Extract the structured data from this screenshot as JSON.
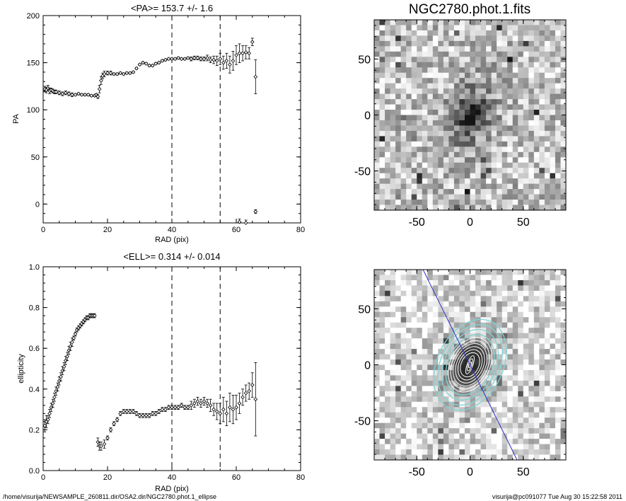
{
  "footer": {
    "left": "/home/visurija/NEWSAMPLE_260811.dir/OSA2.dir/NGC2780.phot.1_ellipse",
    "right": "visurija@pc091077  Tue Aug 30 15:22:58 2011"
  },
  "colors": {
    "axis": "#000000",
    "contour_outer": "#7fd4d4",
    "contour_inner": "#ffffff",
    "major_axis_line": "#3030c0"
  },
  "chart_data": [
    {
      "type": "scatter",
      "title": "<PA>= 153.7 +/-   1.6",
      "xlabel": "RAD (pix)",
      "ylabel": "PA",
      "xlim": [
        0,
        80
      ],
      "ylim": [
        -20,
        200
      ],
      "xticks": [
        "0",
        "20",
        "40",
        "60",
        "80"
      ],
      "yticks": [
        "0",
        "50",
        "100",
        "150",
        "200"
      ],
      "vlines": [
        40,
        55
      ],
      "series": [
        {
          "x": [
            0.5,
            1,
            1.5,
            2,
            2.5,
            3,
            3.5,
            4,
            5,
            6,
            7,
            8,
            9,
            10,
            11,
            12,
            13,
            14,
            15,
            16,
            16.5,
            17,
            17.5,
            18,
            18.5,
            19,
            20,
            21,
            22,
            23,
            24,
            25,
            26,
            27,
            28,
            29,
            30,
            31,
            32,
            33,
            34,
            35,
            36,
            37,
            38,
            39,
            40,
            41,
            42,
            43,
            44,
            45,
            46,
            47,
            48,
            49,
            50,
            51,
            52,
            53,
            54,
            55,
            56,
            57,
            58,
            59,
            60,
            61,
            62,
            63,
            64,
            65,
            66
          ],
          "y": [
            122,
            121,
            123,
            120,
            121,
            120,
            119,
            119,
            118,
            117,
            118,
            117,
            116,
            116,
            117,
            116,
            116,
            116,
            115,
            115,
            116,
            114,
            122,
            131,
            136,
            138,
            139,
            139,
            138,
            138,
            139,
            138,
            139,
            139,
            140,
            144,
            148,
            150,
            149,
            147,
            147,
            149,
            150,
            152,
            153,
            154,
            154,
            154,
            155,
            154,
            154,
            155,
            154,
            155,
            155,
            154,
            154,
            155,
            153,
            153,
            152,
            154,
            150,
            152,
            148,
            152,
            158,
            160,
            160,
            161,
            160,
            172,
            135
          ],
          "err": [
            3,
            3,
            3,
            3,
            2,
            2,
            2,
            2,
            2,
            2,
            2,
            2,
            2,
            1,
            1,
            1,
            1,
            1,
            1,
            1,
            1,
            2,
            4,
            4,
            3,
            3,
            2,
            2,
            1,
            1,
            1,
            1,
            1,
            1,
            1,
            1,
            1,
            1,
            1,
            1,
            1,
            1,
            1,
            1,
            1,
            1,
            1,
            1,
            1,
            1,
            1,
            1,
            2,
            2,
            2,
            2,
            2,
            3,
            3,
            4,
            5,
            6,
            7,
            8,
            9,
            10,
            10,
            10,
            8,
            7,
            6,
            4,
            18
          ]
        },
        {
          "x": [
            61,
            63,
            66
          ],
          "y": [
            -19,
            -20,
            -8
          ],
          "err": [
            3,
            3,
            2
          ]
        }
      ]
    },
    {
      "type": "scatter",
      "title": "<ELL>= 0.314 +/-  0.014",
      "xlabel": "RAD (pix)",
      "ylabel": "ellipticity",
      "xlim": [
        0,
        80
      ],
      "ylim": [
        0,
        1
      ],
      "xticks": [
        "0",
        "20",
        "40",
        "60",
        "80"
      ],
      "yticks": [
        "0.0",
        "0.2",
        "0.4",
        "0.6",
        "0.8",
        "1.0"
      ],
      "vlines": [
        40,
        55
      ],
      "series": [
        {
          "x": [
            0.5,
            1,
            1.5,
            2,
            2.5,
            3,
            3.5,
            4,
            4.5,
            5,
            5.5,
            6,
            6.5,
            7,
            7.5,
            8,
            8.5,
            9,
            9.5,
            10,
            10.5,
            11,
            11.5,
            12,
            12.5,
            13,
            13.5,
            14,
            14.5,
            15,
            15.5,
            16,
            17,
            17.5,
            18,
            19,
            20,
            21,
            22,
            23,
            24,
            25,
            26,
            27,
            28,
            29,
            30,
            31,
            32,
            33,
            34,
            35,
            36,
            37,
            38,
            39,
            40,
            41,
            42,
            43,
            44,
            45,
            46,
            47,
            48,
            49,
            50,
            51,
            52,
            53,
            54,
            55,
            56,
            57,
            58,
            59,
            60,
            61,
            62,
            63,
            64,
            65,
            66
          ],
          "y": [
            0.22,
            0.24,
            0.25,
            0.28,
            0.31,
            0.33,
            0.36,
            0.39,
            0.41,
            0.44,
            0.46,
            0.49,
            0.51,
            0.54,
            0.56,
            0.59,
            0.61,
            0.63,
            0.65,
            0.67,
            0.69,
            0.7,
            0.71,
            0.72,
            0.73,
            0.74,
            0.75,
            0.75,
            0.76,
            0.76,
            0.76,
            0.76,
            0.14,
            0.12,
            0.12,
            0.13,
            0.16,
            0.2,
            0.23,
            0.25,
            0.28,
            0.29,
            0.29,
            0.29,
            0.29,
            0.28,
            0.27,
            0.27,
            0.27,
            0.27,
            0.28,
            0.28,
            0.29,
            0.3,
            0.3,
            0.31,
            0.31,
            0.31,
            0.31,
            0.32,
            0.31,
            0.31,
            0.32,
            0.33,
            0.34,
            0.33,
            0.34,
            0.33,
            0.32,
            0.3,
            0.29,
            0.28,
            0.3,
            0.28,
            0.31,
            0.3,
            0.31,
            0.33,
            0.36,
            0.38,
            0.39,
            0.42,
            0.35
          ],
          "err": [
            0.03,
            0.03,
            0.02,
            0.02,
            0.02,
            0.02,
            0.02,
            0.02,
            0.02,
            0.02,
            0.02,
            0.02,
            0.02,
            0.02,
            0.02,
            0.02,
            0.02,
            0.02,
            0.01,
            0.01,
            0.01,
            0.01,
            0.01,
            0.01,
            0.01,
            0.01,
            0.01,
            0.01,
            0.01,
            0.01,
            0.01,
            0.01,
            0.02,
            0.02,
            0.02,
            0.02,
            0.01,
            0.01,
            0.01,
            0.01,
            0.01,
            0.01,
            0.01,
            0.01,
            0.01,
            0.01,
            0.01,
            0.01,
            0.01,
            0.01,
            0.01,
            0.01,
            0.01,
            0.01,
            0.01,
            0.01,
            0.01,
            0.01,
            0.01,
            0.01,
            0.01,
            0.01,
            0.02,
            0.02,
            0.02,
            0.02,
            0.02,
            0.02,
            0.03,
            0.03,
            0.04,
            0.05,
            0.06,
            0.06,
            0.07,
            0.07,
            0.06,
            0.05,
            0.04,
            0.04,
            0.04,
            0.06,
            0.18
          ]
        }
      ]
    },
    {
      "type": "heatmap",
      "title": "NGC2780.phot.1.fits",
      "xlim": [
        -90,
        90
      ],
      "ylim": [
        -85,
        85
      ],
      "xticks": [
        "-50",
        "0",
        "50"
      ],
      "yticks": [
        "-50",
        "0",
        "50"
      ]
    },
    {
      "type": "heatmap",
      "title": "",
      "xlim": [
        -90,
        90
      ],
      "ylim": [
        -85,
        85
      ],
      "xticks": [
        "-50",
        "0",
        "50"
      ],
      "yticks": [
        "-50",
        "0",
        "50"
      ],
      "major_axis_pa_deg": 153.7,
      "contours_outer_sma": [
        45,
        40,
        35,
        30
      ],
      "contours_inner_sma": [
        27,
        24,
        21,
        18,
        15,
        12,
        9,
        6,
        3
      ],
      "ellipticity": 0.314
    }
  ]
}
